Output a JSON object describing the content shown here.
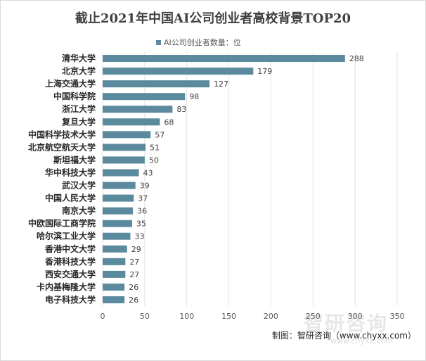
{
  "chart_data": {
    "type": "bar",
    "orientation": "horizontal",
    "title": "截止2021年中国AI公司创业者高校背景TOP20",
    "legend": "AI公司创业者数量：位",
    "categories": [
      "清华大学",
      "北京大学",
      "上海交通大学",
      "中国科学院",
      "浙江大学",
      "复旦大学",
      "中国科学技术大学",
      "北京航空航天大学",
      "斯坦福大学",
      "华中科技大学",
      "武汉大学",
      "中国人民大学",
      "南京大学",
      "中欧国际工商学院",
      "哈尔滨工业大学",
      "香港中文大学",
      "香港科技大学",
      "西安交通大学",
      "卡内基梅隆大学",
      "电子科技大学"
    ],
    "values": [
      288,
      179,
      127,
      98,
      83,
      68,
      57,
      51,
      50,
      43,
      39,
      37,
      36,
      35,
      33,
      29,
      27,
      27,
      26,
      26
    ],
    "xlim": [
      0,
      350
    ],
    "xticks": [
      0,
      50,
      100,
      150,
      200,
      250,
      300,
      350
    ],
    "grid": true,
    "bar_color": "#5b8a9e"
  },
  "source_text": "制图：智研咨询（www.chyxx.com）",
  "watermark_text": "智研咨询",
  "watermark_url": "www.chyxx.com"
}
